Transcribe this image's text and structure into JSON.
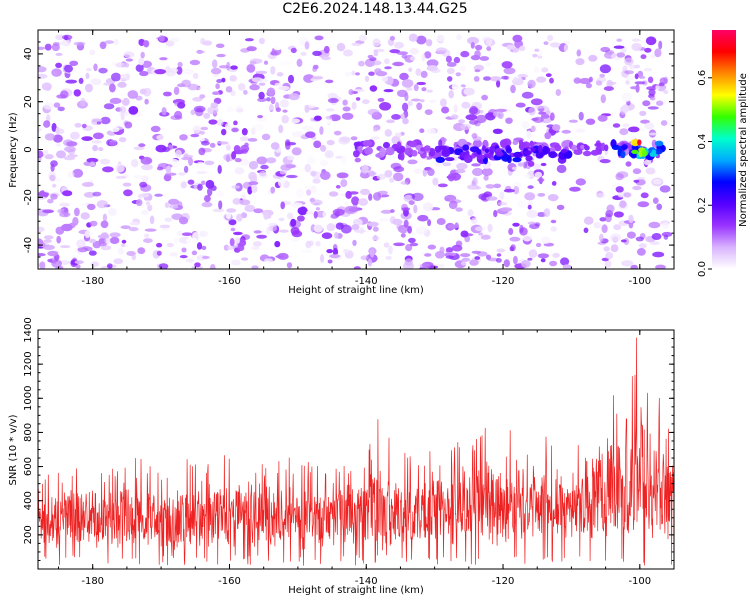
{
  "figure_title": "C2E6.2024.148.13.44.G25",
  "colors": {
    "axis": "#000000",
    "snr_line": "#ee2222",
    "spectrogram_low": "#e8c8ff",
    "spectrogram_mid": "#7a00ff",
    "spectrogram_high": "#ff0000"
  },
  "chart_data": [
    {
      "type": "heatmap",
      "title": "",
      "xlabel": "Height of straight line (km)",
      "ylabel": "Frequency (Hz)",
      "xlim": [
        -188,
        -95
      ],
      "ylim": [
        -50,
        50
      ],
      "x_ticks": [
        -180,
        -160,
        -140,
        -120,
        -100
      ],
      "y_ticks": [
        -40,
        -20,
        0,
        20,
        40
      ],
      "grid": false,
      "colorbar": {
        "label": "Normalized spectral amplitude",
        "range": [
          0.0,
          0.75
        ],
        "ticks": [
          0.0,
          0.2,
          0.4,
          0.6
        ],
        "colormap": [
          "#ffffff",
          "#d9b3ff",
          "#9933ff",
          "#5500ff",
          "#0000ff",
          "#00aaff",
          "#00ffcc",
          "#33ff00",
          "#ffff00",
          "#ff8800",
          "#ff0000",
          "#ff0066"
        ]
      },
      "features": [
        {
          "x_range": [
            -188,
            -96
          ],
          "freq_range": [
            -50,
            47
          ],
          "amplitude": 0.05,
          "description": "speckled background"
        },
        {
          "x_range": [
            -142,
            -96
          ],
          "freq_center": 0,
          "amplitude": 0.15
        },
        {
          "x_range": [
            -130,
            -110
          ],
          "freq_center": -2,
          "amplitude": 0.25
        },
        {
          "x_range": [
            -104,
            -96
          ],
          "freq_center": 0,
          "amplitude": 0.35
        },
        {
          "x_range": [
            -101,
            -99
          ],
          "freq_center": 0,
          "amplitude": 0.7
        }
      ]
    },
    {
      "type": "line",
      "title": "",
      "xlabel": "Height of straight line (km)",
      "ylabel": "SNR (10 * v/v)",
      "xlim": [
        -188,
        -95
      ],
      "ylim": [
        0,
        1400
      ],
      "x_ticks": [
        -180,
        -160,
        -140,
        -120,
        -100
      ],
      "y_ticks": [
        200,
        400,
        600,
        800,
        1000,
        1200,
        1400
      ],
      "grid": false,
      "series": [
        {
          "color": "#ee2222",
          "x": [
            -188,
            -186,
            -184,
            -182,
            -180,
            -178,
            -176,
            -174,
            -172,
            -170,
            -168,
            -166,
            -164,
            -162,
            -160,
            -158,
            -156,
            -154,
            -152,
            -150,
            -148,
            -146,
            -144,
            -142,
            -140,
            -138,
            -136,
            -134,
            -132,
            -130,
            -128,
            -126,
            -124,
            -122,
            -120,
            -118,
            -116,
            -114,
            -112,
            -110,
            -108,
            -106,
            -104,
            -102,
            -100,
            -98,
            -96
          ],
          "y_mean": [
            280,
            290,
            300,
            280,
            300,
            290,
            300,
            320,
            300,
            290,
            300,
            310,
            290,
            300,
            320,
            310,
            290,
            300,
            310,
            290,
            300,
            290,
            310,
            320,
            330,
            350,
            330,
            320,
            330,
            330,
            340,
            350,
            380,
            420,
            360,
            380,
            390,
            380,
            370,
            400,
            420,
            470,
            480,
            520,
            620,
            480,
            400
          ],
          "y_peak": [
            550,
            600,
            650,
            620,
            640,
            580,
            700,
            680,
            620,
            600,
            700,
            660,
            600,
            650,
            700,
            640,
            600,
            640,
            680,
            620,
            640,
            600,
            650,
            700,
            720,
            1020,
            700,
            680,
            700,
            690,
            720,
            760,
            800,
            1020,
            850,
            800,
            820,
            790,
            760,
            850,
            900,
            1050,
            1100,
            1250,
            1400,
            1150,
            880
          ]
        }
      ]
    }
  ]
}
